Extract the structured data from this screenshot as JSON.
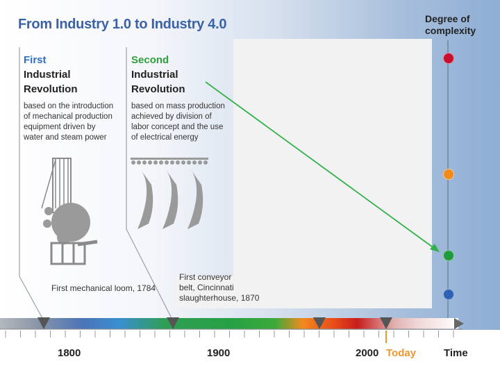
{
  "title": "From Industry 1.0 to Industry 4.0",
  "y_axis_label": {
    "line1": "Degree of",
    "line2": "complexity"
  },
  "first": {
    "title_lines": [
      "First",
      "Industrial",
      "Revolution"
    ],
    "color": "#2f6fc1",
    "desc_lines": [
      "based on the introduction",
      "of  mechanical production",
      "equipment driven by",
      "water and steam power"
    ],
    "caption": "First mechanical loom, 1784"
  },
  "second": {
    "title_lines": [
      "Second",
      "Industrial",
      "Revolution"
    ],
    "color": "#2f9e3c",
    "desc_lines": [
      "based on mass production",
      "achieved by division of",
      "labor concept and the use",
      "of electrical energy"
    ],
    "caption_lines": [
      "First conveyor",
      "belt, Cincinnati",
      "slaughterhouse, 1870"
    ]
  },
  "timeline": {
    "years": [
      "1800",
      "1900",
      "2000"
    ],
    "today": "Today",
    "today_color": "#f0962e",
    "axis_label": "Time"
  },
  "complexity_levels": [
    {
      "name": "level-4",
      "color": "#c8102e"
    },
    {
      "name": "level-3",
      "color": "#f28a1e"
    },
    {
      "name": "level-2",
      "color": "#1f9a3c"
    },
    {
      "name": "level-1",
      "color": "#2d62b5"
    }
  ],
  "arrow_color": "#2fb04a"
}
